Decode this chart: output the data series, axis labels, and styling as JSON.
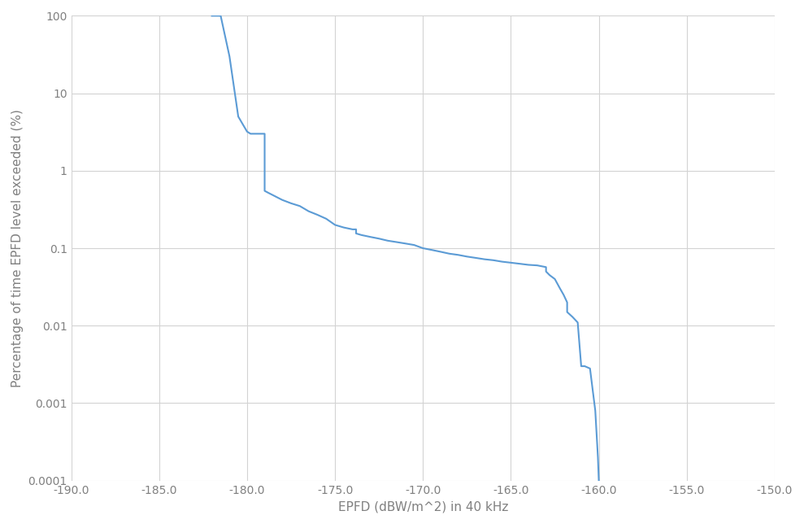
{
  "x": [
    -182.0,
    -181.5,
    -181.0,
    -180.5,
    -180.0,
    -179.8,
    -179.5,
    -179.0,
    -179.0,
    -178.8,
    -178.5,
    -178.0,
    -177.5,
    -177.0,
    -176.5,
    -176.0,
    -175.5,
    -175.0,
    -174.5,
    -174.0,
    -173.8,
    -173.8,
    -173.5,
    -173.0,
    -172.5,
    -172.0,
    -171.5,
    -171.0,
    -170.5,
    -170.0,
    -169.5,
    -169.0,
    -168.5,
    -168.0,
    -167.5,
    -167.0,
    -166.5,
    -166.0,
    -165.5,
    -165.0,
    -164.5,
    -164.0,
    -163.5,
    -163.0,
    -163.0,
    -162.8,
    -162.5,
    -162.2,
    -162.0,
    -161.8,
    -161.8,
    -161.5,
    -161.2,
    -161.0,
    -160.8,
    -160.5,
    -160.2,
    -160.05,
    -160.0
  ],
  "y": [
    100,
    100,
    30,
    5.0,
    3.2,
    3.0,
    3.0,
    3.0,
    0.55,
    0.52,
    0.48,
    0.42,
    0.38,
    0.35,
    0.3,
    0.27,
    0.24,
    0.2,
    0.185,
    0.175,
    0.175,
    0.155,
    0.148,
    0.14,
    0.133,
    0.125,
    0.12,
    0.115,
    0.11,
    0.1,
    0.095,
    0.09,
    0.085,
    0.082,
    0.078,
    0.075,
    0.072,
    0.07,
    0.067,
    0.065,
    0.063,
    0.061,
    0.06,
    0.057,
    0.05,
    0.045,
    0.04,
    0.03,
    0.025,
    0.02,
    0.015,
    0.013,
    0.011,
    0.003,
    0.003,
    0.0028,
    0.0008,
    0.0002,
    0.0001
  ],
  "xlabel": "EPFD (dBW/m^2) in 40 kHz",
  "ylabel": "Percentage of time EPFD level exceeded (%)",
  "line_color": "#5B9BD5",
  "line_width": 1.5,
  "xlim": [
    -190,
    -150
  ],
  "ylim": [
    0.0001,
    100
  ],
  "xticks": [
    -190.0,
    -185.0,
    -180.0,
    -175.0,
    -170.0,
    -165.0,
    -160.0,
    -155.0,
    -150.0
  ],
  "yticks": [
    0.0001,
    0.001,
    0.01,
    0.1,
    1,
    10,
    100
  ],
  "ytick_labels": [
    "0.0001",
    "0.001",
    "0.01",
    "0.1",
    "1",
    "10",
    "100"
  ],
  "grid_color": "#D3D3D3",
  "background_color": "#FFFFFF",
  "tick_color": "#808080",
  "label_color": "#808080",
  "tick_fontsize": 10,
  "label_fontsize": 11
}
